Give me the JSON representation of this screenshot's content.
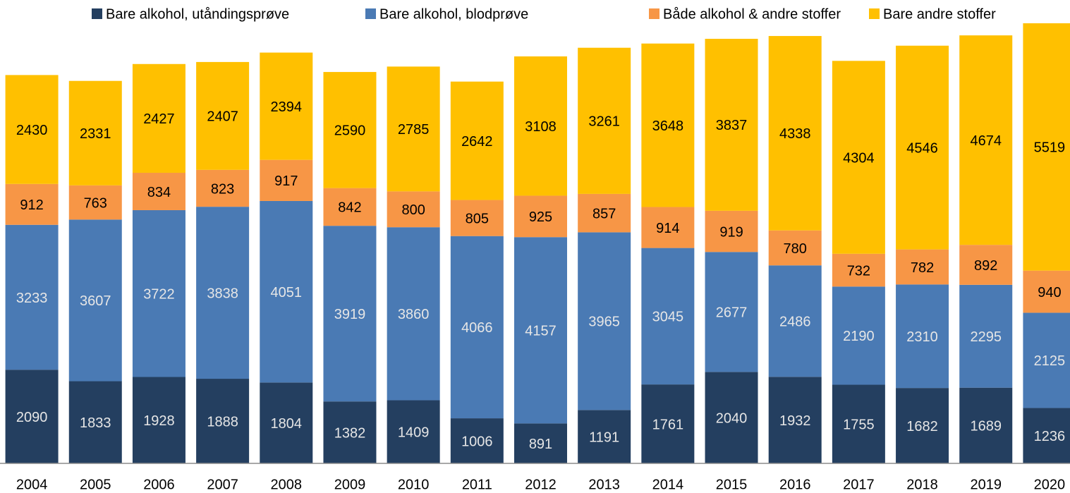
{
  "chart_data": {
    "type": "stacked_bar",
    "categories": [
      "2004",
      "2005",
      "2006",
      "2007",
      "2008",
      "2009",
      "2010",
      "2011",
      "2012",
      "2013",
      "2014",
      "2015",
      "2016",
      "2017",
      "2018",
      "2019",
      "2020"
    ],
    "series": [
      {
        "name": "Bare alkohol, utåndingsprøve",
        "color": "#243f60",
        "label_color": "#e6e6e6",
        "values": [
          2090,
          1833,
          1928,
          1888,
          1804,
          1382,
          1409,
          1006,
          891,
          1191,
          1761,
          2040,
          1932,
          1755,
          1682,
          1689,
          1236
        ]
      },
      {
        "name": "Bare alkohol, blodprøve",
        "color": "#4a7ab4",
        "label_color": "#e6e6e6",
        "values": [
          3233,
          3607,
          3722,
          3838,
          4051,
          3919,
          3860,
          4066,
          4157,
          3965,
          3045,
          2677,
          2486,
          2190,
          2310,
          2295,
          2125
        ]
      },
      {
        "name": "Både alkohol & andre stoffer",
        "color": "#f79646",
        "label_color": "#000000",
        "values": [
          912,
          763,
          834,
          823,
          917,
          842,
          800,
          805,
          925,
          857,
          914,
          919,
          780,
          732,
          782,
          892,
          940
        ]
      },
      {
        "name": "Bare andre stoffer",
        "color": "#ffc000",
        "label_color": "#000000",
        "values": [
          2430,
          2331,
          2427,
          2407,
          2394,
          2590,
          2785,
          2642,
          3108,
          3261,
          3648,
          3837,
          4338,
          4304,
          4546,
          4674,
          5519
        ]
      }
    ]
  }
}
